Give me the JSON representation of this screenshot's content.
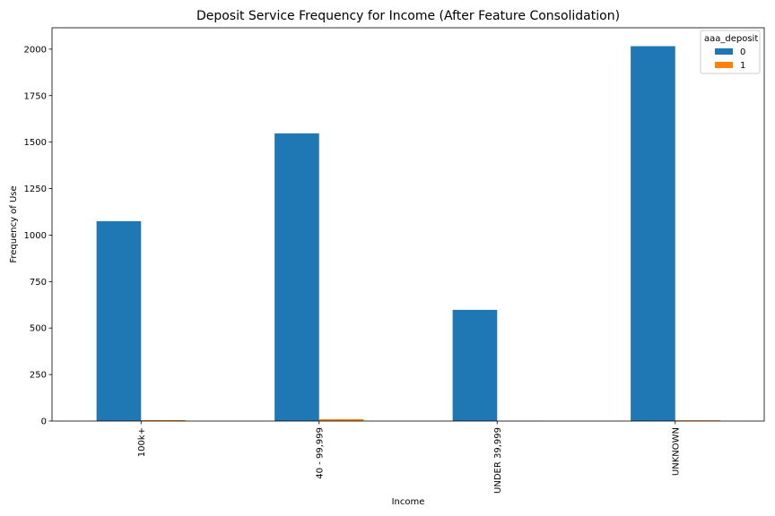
{
  "chart_data": {
    "type": "bar",
    "title": "Deposit Service Frequency for Income (After Feature Consolidation)",
    "xlabel": "Income",
    "ylabel": "Frequency of Use",
    "categories": [
      "100k+",
      "40 - 99,999",
      "UNDER 39,999",
      "UNKNOWN"
    ],
    "series": [
      {
        "name": "0",
        "values": [
          1075,
          1547,
          598,
          2016
        ],
        "color": "#1f77b4"
      },
      {
        "name": "1",
        "values": [
          5,
          10,
          1,
          4
        ],
        "color": "#ff7f0e"
      }
    ],
    "ylim": [
      0,
      2115
    ],
    "yticks": [
      0,
      250,
      500,
      750,
      1000,
      1250,
      1500,
      1750,
      2000
    ],
    "legend": {
      "title": "aaa_deposit",
      "position": "top-right"
    },
    "grid": false
  }
}
